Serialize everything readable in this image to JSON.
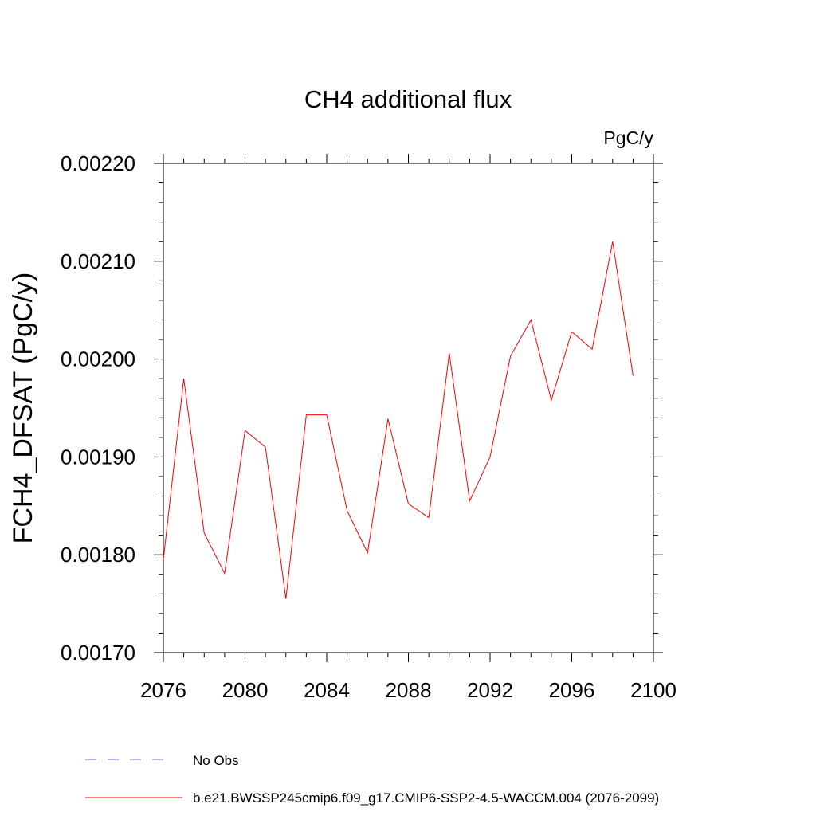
{
  "chart_data": {
    "type": "line",
    "title": "CH4 additional flux",
    "units_label": "PgC/y",
    "xlabel": "",
    "ylabel": "FCH4_DFSAT  (PgC/y)",
    "xlim": [
      2076,
      2100
    ],
    "ylim": [
      0.0017,
      0.0022
    ],
    "xticks": [
      2076,
      2080,
      2084,
      2088,
      2092,
      2096,
      2100
    ],
    "xtick_labels": [
      "2076",
      "2080",
      "2084",
      "2088",
      "2092",
      "2096",
      "2100"
    ],
    "yticks": [
      0.0017,
      0.0018,
      0.0019,
      0.002,
      0.0021,
      0.0022
    ],
    "ytick_labels": [
      "0.00170",
      "0.00180",
      "0.00190",
      "0.00200",
      "0.00210",
      "0.00220"
    ],
    "grid": false,
    "series": [
      {
        "name": "b.e21.BWSSP245cmip6.f09_g17.CMIP6-SSP2-4.5-WACCM.004 (2076-2099)",
        "color": "#ff0000",
        "x": [
          2076,
          2077,
          2078,
          2079,
          2080,
          2081,
          2082,
          2083,
          2084,
          2085,
          2086,
          2087,
          2088,
          2089,
          2090,
          2091,
          2092,
          2093,
          2094,
          2095,
          2096,
          2097,
          2098,
          2099
        ],
        "values": [
          0.001795,
          0.00198,
          0.001822,
          0.001781,
          0.001927,
          0.00191,
          0.001755,
          0.001943,
          0.001943,
          0.001845,
          0.001802,
          0.001939,
          0.001852,
          0.001838,
          0.002006,
          0.001855,
          0.0019,
          0.002003,
          0.00204,
          0.001958,
          0.002028,
          0.00201,
          0.00212,
          0.001983
        ]
      }
    ],
    "legend": {
      "placement": "bottom",
      "entries": [
        {
          "label": "No Obs",
          "color": "#6a5acd",
          "style": "dashed"
        },
        {
          "label": "b.e21.BWSSP245cmip6.f09_g17.CMIP6-SSP2-4.5-WACCM.004 (2076-2099)",
          "color": "#ff0000",
          "style": "solid"
        }
      ]
    }
  }
}
